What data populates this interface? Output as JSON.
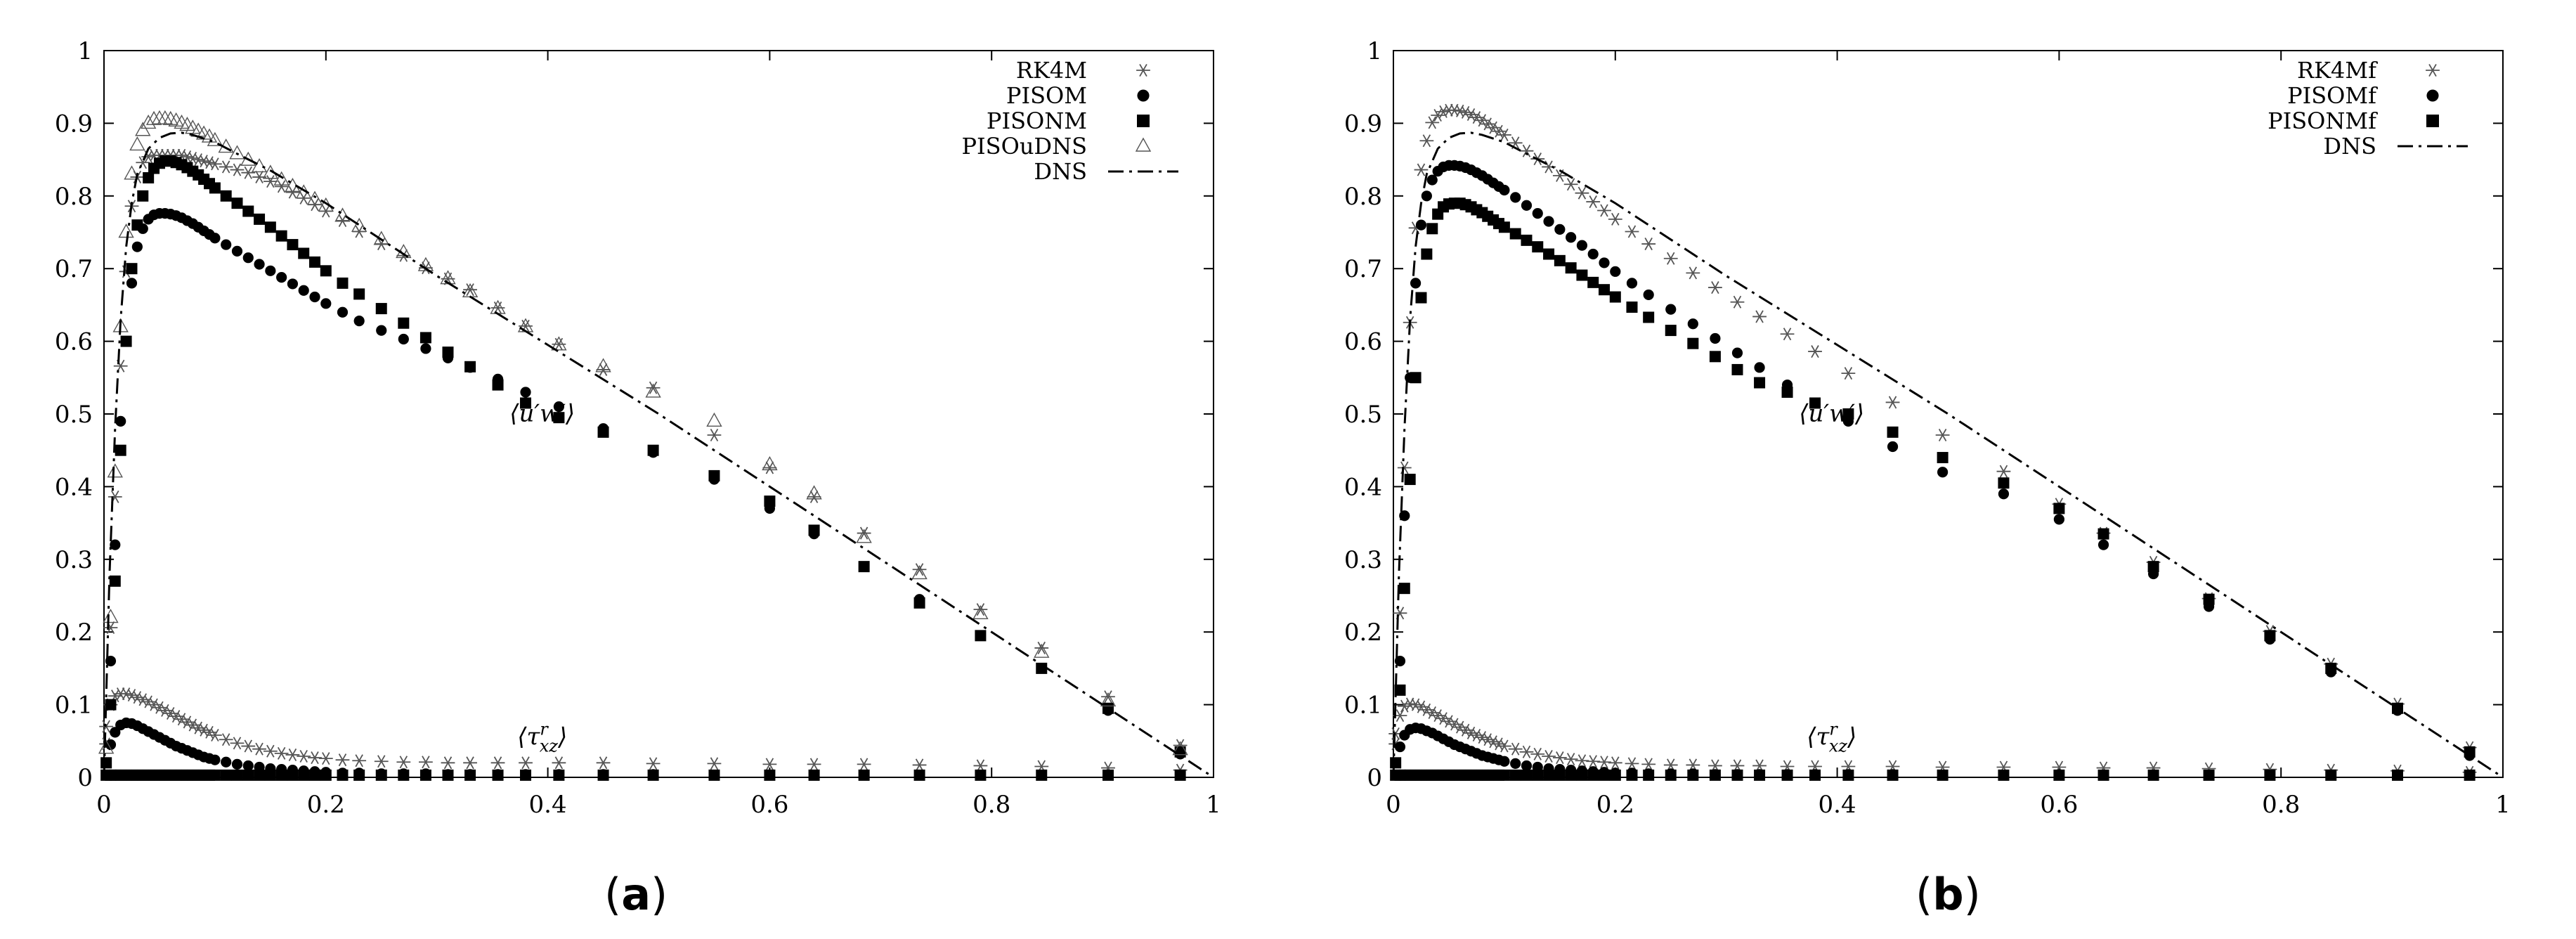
{
  "figure": {
    "panels": [
      {
        "caption_open": "(",
        "caption_letter": "a",
        "caption_close": ")"
      },
      {
        "caption_open": "(",
        "caption_letter": "b",
        "caption_close": ")"
      }
    ]
  },
  "chart_data": [
    {
      "type": "line",
      "title": "",
      "xlabel": "",
      "ylabel": "",
      "xlim": [
        0,
        1
      ],
      "ylim": [
        0,
        1
      ],
      "x_ticks": [
        "0",
        "0.2",
        "0.4",
        "0.6",
        "0.8",
        "1"
      ],
      "y_ticks": [
        "0",
        "0.1",
        "0.2",
        "0.3",
        "0.4",
        "0.5",
        "0.6",
        "0.7",
        "0.8",
        "0.9",
        "1"
      ],
      "grid": false,
      "legend_position": "top-right",
      "annotations": [
        {
          "text": "⟨u′w′⟩",
          "x": 0.395,
          "y": 0.49
        },
        {
          "text": "⟨τ^r_xz⟩",
          "x": 0.395,
          "y": 0.045
        }
      ],
      "x_points": [
        0.002,
        0.006,
        0.01,
        0.015,
        0.02,
        0.025,
        0.03,
        0.035,
        0.04,
        0.045,
        0.05,
        0.055,
        0.06,
        0.065,
        0.07,
        0.075,
        0.08,
        0.085,
        0.09,
        0.095,
        0.1,
        0.11,
        0.12,
        0.13,
        0.14,
        0.15,
        0.16,
        0.17,
        0.18,
        0.19,
        0.2,
        0.215,
        0.23,
        0.25,
        0.27,
        0.29,
        0.31,
        0.33,
        0.355,
        0.38,
        0.41,
        0.45,
        0.495,
        0.55,
        0.6,
        0.64,
        0.685,
        0.735,
        0.79,
        0.845,
        0.905,
        0.97
      ],
      "series": [
        {
          "name": "RK4M",
          "marker": "star",
          "uw": [
            0.04,
            0.2,
            0.38,
            0.56,
            0.69,
            0.78,
            0.82,
            0.84,
            0.848,
            0.85,
            0.85,
            0.85,
            0.85,
            0.85,
            0.85,
            0.848,
            0.846,
            0.844,
            0.842,
            0.84,
            0.838,
            0.834,
            0.83,
            0.826,
            0.82,
            0.814,
            0.807,
            0.799,
            0.791,
            0.782,
            0.773,
            0.76,
            0.745,
            0.728,
            0.712,
            0.695,
            0.68,
            0.665,
            0.64,
            0.615,
            0.59,
            0.555,
            0.53,
            0.465,
            0.42,
            0.38,
            0.33,
            0.28,
            0.225,
            0.172,
            0.105,
            0.038
          ],
          "tau": [
            0.07,
            0.1,
            0.112,
            0.115,
            0.115,
            0.113,
            0.11,
            0.107,
            0.104,
            0.1,
            0.096,
            0.092,
            0.088,
            0.084,
            0.08,
            0.076,
            0.072,
            0.068,
            0.065,
            0.062,
            0.058,
            0.052,
            0.047,
            0.043,
            0.039,
            0.036,
            0.033,
            0.031,
            0.029,
            0.027,
            0.026,
            0.024,
            0.023,
            0.022,
            0.021,
            0.021,
            0.02,
            0.02,
            0.02,
            0.02,
            0.02,
            0.02,
            0.019,
            0.019,
            0.018,
            0.018,
            0.018,
            0.017,
            0.016,
            0.015,
            0.013,
            0.01
          ]
        },
        {
          "name": "PISOM",
          "marker": "circle",
          "uw": [
            0.02,
            0.16,
            0.32,
            0.49,
            0.6,
            0.68,
            0.73,
            0.755,
            0.768,
            0.774,
            0.776,
            0.776,
            0.775,
            0.773,
            0.77,
            0.766,
            0.762,
            0.757,
            0.752,
            0.747,
            0.742,
            0.733,
            0.724,
            0.715,
            0.706,
            0.697,
            0.688,
            0.679,
            0.67,
            0.661,
            0.652,
            0.64,
            0.628,
            0.615,
            0.603,
            0.59,
            0.577,
            0.564,
            0.548,
            0.53,
            0.51,
            0.48,
            0.447,
            0.41,
            0.37,
            0.335,
            0.29,
            0.245,
            0.195,
            0.15,
            0.092,
            0.032
          ],
          "tau": [
            0.02,
            0.045,
            0.062,
            0.072,
            0.075,
            0.074,
            0.071,
            0.067,
            0.063,
            0.059,
            0.055,
            0.051,
            0.047,
            0.043,
            0.04,
            0.037,
            0.034,
            0.031,
            0.028,
            0.026,
            0.024,
            0.021,
            0.018,
            0.016,
            0.014,
            0.012,
            0.011,
            0.01,
            0.009,
            0.008,
            0.007,
            0.006,
            0.006,
            0.005,
            0.005,
            0.005,
            0.004,
            0.004,
            0.004,
            0.004,
            0.004,
            0.004,
            0.004,
            0.003,
            0.003,
            0.003,
            0.003,
            0.003,
            0.003,
            0.003,
            0.003,
            0.003
          ]
        },
        {
          "name": "PISONM",
          "marker": "square",
          "uw": [
            0.02,
            0.1,
            0.27,
            0.45,
            0.6,
            0.7,
            0.76,
            0.8,
            0.825,
            0.838,
            0.845,
            0.848,
            0.848,
            0.846,
            0.843,
            0.839,
            0.834,
            0.829,
            0.823,
            0.817,
            0.811,
            0.8,
            0.79,
            0.779,
            0.768,
            0.757,
            0.745,
            0.733,
            0.721,
            0.709,
            0.697,
            0.68,
            0.665,
            0.645,
            0.625,
            0.605,
            0.585,
            0.565,
            0.54,
            0.515,
            0.495,
            0.475,
            0.45,
            0.415,
            0.38,
            0.34,
            0.29,
            0.24,
            0.195,
            0.15,
            0.095,
            0.035
          ],
          "tau": [
            0.003,
            0.003,
            0.003,
            0.003,
            0.003,
            0.003,
            0.003,
            0.003,
            0.003,
            0.003,
            0.003,
            0.003,
            0.003,
            0.003,
            0.003,
            0.003,
            0.003,
            0.003,
            0.003,
            0.003,
            0.003,
            0.003,
            0.003,
            0.003,
            0.003,
            0.003,
            0.003,
            0.003,
            0.003,
            0.003,
            0.003,
            0.003,
            0.003,
            0.003,
            0.003,
            0.003,
            0.003,
            0.003,
            0.003,
            0.003,
            0.003,
            0.003,
            0.003,
            0.003,
            0.003,
            0.003,
            0.003,
            0.003,
            0.003,
            0.003,
            0.003,
            0.003
          ]
        },
        {
          "name": "PISOuDNS",
          "marker": "triangle",
          "uw": [
            0.04,
            0.22,
            0.42,
            0.62,
            0.75,
            0.83,
            0.87,
            0.89,
            0.9,
            0.905,
            0.906,
            0.906,
            0.905,
            0.903,
            0.9,
            0.897,
            0.893,
            0.889,
            0.885,
            0.881,
            0.876,
            0.867,
            0.858,
            0.849,
            0.84,
            0.831,
            0.822,
            0.813,
            0.804,
            0.795,
            0.786,
            0.772,
            0.758,
            0.74,
            0.722,
            0.704,
            0.686,
            0.668,
            0.645,
            0.62,
            0.595,
            0.565,
            0.53,
            0.49,
            0.43,
            0.39,
            0.33,
            0.28,
            0.225,
            0.172,
            0.105,
            0.038
          ],
          "tau": []
        },
        {
          "name": "DNS",
          "marker": "dashdot",
          "uw_x": [
            0,
            0.005,
            0.01,
            0.015,
            0.02,
            0.025,
            0.03,
            0.04,
            0.05,
            0.06,
            0.07,
            0.08,
            0.1,
            0.12,
            0.15,
            0.2,
            0.3,
            0.4,
            0.5,
            0.6,
            0.7,
            0.8,
            0.9,
            1.0
          ],
          "uw_y": [
            0,
            0.28,
            0.48,
            0.63,
            0.73,
            0.79,
            0.83,
            0.865,
            0.88,
            0.886,
            0.887,
            0.884,
            0.874,
            0.858,
            0.835,
            0.79,
            0.69,
            0.595,
            0.5,
            0.4,
            0.3,
            0.2,
            0.1,
            0
          ]
        }
      ]
    },
    {
      "type": "line",
      "title": "",
      "xlabel": "",
      "ylabel": "",
      "xlim": [
        0,
        1
      ],
      "ylim": [
        0,
        1
      ],
      "x_ticks": [
        "0",
        "0.2",
        "0.4",
        "0.6",
        "0.8",
        "1"
      ],
      "y_ticks": [
        "0",
        "0.1",
        "0.2",
        "0.3",
        "0.4",
        "0.5",
        "0.6",
        "0.7",
        "0.8",
        "0.9",
        "1"
      ],
      "grid": false,
      "legend_position": "top-right",
      "annotations": [
        {
          "text": "⟨u′w′⟩",
          "x": 0.395,
          "y": 0.49
        },
        {
          "text": "⟨τ^r_xz⟩",
          "x": 0.395,
          "y": 0.045
        }
      ],
      "x_points": [
        0.002,
        0.006,
        0.01,
        0.015,
        0.02,
        0.025,
        0.03,
        0.035,
        0.04,
        0.045,
        0.05,
        0.055,
        0.06,
        0.065,
        0.07,
        0.075,
        0.08,
        0.085,
        0.09,
        0.095,
        0.1,
        0.11,
        0.12,
        0.13,
        0.14,
        0.15,
        0.16,
        0.17,
        0.18,
        0.19,
        0.2,
        0.215,
        0.23,
        0.25,
        0.27,
        0.29,
        0.31,
        0.33,
        0.355,
        0.38,
        0.41,
        0.45,
        0.495,
        0.55,
        0.6,
        0.64,
        0.685,
        0.735,
        0.79,
        0.845,
        0.905,
        0.97
      ],
      "series": [
        {
          "name": "RK4Mf",
          "marker": "star",
          "uw": [
            0.04,
            0.22,
            0.42,
            0.62,
            0.75,
            0.83,
            0.87,
            0.895,
            0.905,
            0.91,
            0.912,
            0.912,
            0.911,
            0.909,
            0.906,
            0.902,
            0.898,
            0.893,
            0.888,
            0.883,
            0.878,
            0.867,
            0.856,
            0.845,
            0.834,
            0.822,
            0.81,
            0.798,
            0.786,
            0.774,
            0.762,
            0.745,
            0.728,
            0.708,
            0.688,
            0.668,
            0.648,
            0.628,
            0.604,
            0.58,
            0.55,
            0.51,
            0.465,
            0.415,
            0.37,
            0.33,
            0.29,
            0.24,
            0.195,
            0.15,
            0.095,
            0.035
          ],
          "tau": [
            0.06,
            0.085,
            0.098,
            0.101,
            0.1,
            0.097,
            0.093,
            0.089,
            0.085,
            0.081,
            0.077,
            0.073,
            0.069,
            0.065,
            0.061,
            0.058,
            0.055,
            0.052,
            0.049,
            0.046,
            0.043,
            0.039,
            0.035,
            0.032,
            0.029,
            0.027,
            0.025,
            0.023,
            0.022,
            0.021,
            0.02,
            0.019,
            0.018,
            0.017,
            0.017,
            0.016,
            0.016,
            0.016,
            0.015,
            0.015,
            0.015,
            0.015,
            0.014,
            0.014,
            0.014,
            0.013,
            0.013,
            0.012,
            0.011,
            0.01,
            0.009,
            0.007
          ]
        },
        {
          "name": "PISOMf",
          "marker": "circle",
          "uw": [
            0.02,
            0.16,
            0.36,
            0.55,
            0.68,
            0.76,
            0.8,
            0.822,
            0.834,
            0.84,
            0.842,
            0.842,
            0.841,
            0.839,
            0.836,
            0.832,
            0.828,
            0.823,
            0.818,
            0.813,
            0.808,
            0.798,
            0.787,
            0.776,
            0.765,
            0.754,
            0.743,
            0.732,
            0.72,
            0.708,
            0.696,
            0.68,
            0.664,
            0.644,
            0.624,
            0.604,
            0.584,
            0.564,
            0.54,
            0.515,
            0.49,
            0.455,
            0.42,
            0.39,
            0.355,
            0.32,
            0.28,
            0.235,
            0.19,
            0.145,
            0.092,
            0.03
          ],
          "tau": [
            0.02,
            0.042,
            0.058,
            0.066,
            0.068,
            0.067,
            0.064,
            0.061,
            0.057,
            0.053,
            0.049,
            0.045,
            0.042,
            0.039,
            0.036,
            0.033,
            0.03,
            0.028,
            0.026,
            0.024,
            0.022,
            0.019,
            0.016,
            0.014,
            0.012,
            0.011,
            0.01,
            0.009,
            0.008,
            0.007,
            0.006,
            0.006,
            0.005,
            0.005,
            0.005,
            0.004,
            0.004,
            0.004,
            0.004,
            0.004,
            0.004,
            0.004,
            0.003,
            0.003,
            0.003,
            0.003,
            0.003,
            0.003,
            0.003,
            0.003,
            0.003,
            0.003
          ]
        },
        {
          "name": "PISONMf",
          "marker": "square",
          "uw": [
            0.02,
            0.12,
            0.26,
            0.41,
            0.55,
            0.66,
            0.72,
            0.755,
            0.775,
            0.785,
            0.789,
            0.79,
            0.79,
            0.788,
            0.785,
            0.781,
            0.777,
            0.772,
            0.767,
            0.762,
            0.757,
            0.748,
            0.739,
            0.73,
            0.72,
            0.711,
            0.701,
            0.691,
            0.681,
            0.671,
            0.661,
            0.647,
            0.633,
            0.615,
            0.597,
            0.579,
            0.561,
            0.543,
            0.53,
            0.515,
            0.5,
            0.475,
            0.44,
            0.405,
            0.37,
            0.335,
            0.29,
            0.245,
            0.195,
            0.15,
            0.095,
            0.035
          ],
          "tau": [
            0.003,
            0.003,
            0.003,
            0.003,
            0.003,
            0.003,
            0.003,
            0.003,
            0.003,
            0.003,
            0.003,
            0.003,
            0.003,
            0.003,
            0.003,
            0.003,
            0.003,
            0.003,
            0.003,
            0.003,
            0.003,
            0.003,
            0.003,
            0.003,
            0.003,
            0.003,
            0.003,
            0.003,
            0.003,
            0.003,
            0.003,
            0.003,
            0.003,
            0.003,
            0.003,
            0.003,
            0.003,
            0.003,
            0.003,
            0.003,
            0.003,
            0.003,
            0.003,
            0.003,
            0.003,
            0.003,
            0.003,
            0.003,
            0.003,
            0.003,
            0.003,
            0.003
          ]
        },
        {
          "name": "DNS",
          "marker": "dashdot",
          "uw_x": [
            0,
            0.005,
            0.01,
            0.015,
            0.02,
            0.025,
            0.03,
            0.04,
            0.05,
            0.06,
            0.07,
            0.08,
            0.1,
            0.12,
            0.15,
            0.2,
            0.3,
            0.4,
            0.5,
            0.6,
            0.7,
            0.8,
            0.9,
            1.0
          ],
          "uw_y": [
            0,
            0.28,
            0.48,
            0.63,
            0.73,
            0.79,
            0.83,
            0.865,
            0.88,
            0.886,
            0.887,
            0.884,
            0.874,
            0.858,
            0.835,
            0.79,
            0.69,
            0.595,
            0.5,
            0.4,
            0.3,
            0.2,
            0.1,
            0
          ]
        }
      ]
    }
  ]
}
